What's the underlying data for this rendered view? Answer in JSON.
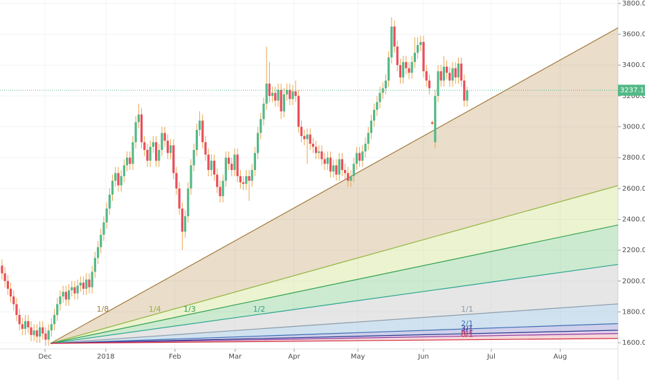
{
  "chart_data": {
    "type": "candlestick",
    "open": [
      2100,
      2050,
      2000,
      1950,
      1900,
      1850,
      1780,
      1720,
      1690,
      1740,
      1700,
      1650,
      1680,
      1640,
      1700,
      1660,
      1620,
      1680,
      1720,
      1780,
      1850,
      1900,
      1930,
      1880,
      1940,
      1960,
      1920,
      1970,
      1990,
      1950,
      2010,
      1960,
      2060,
      2150,
      2220,
      2300,
      2380,
      2470,
      2560,
      2650,
      2700,
      2620,
      2680,
      2750,
      2800,
      2760,
      2900,
      3030,
      3080,
      2900,
      2850,
      2780,
      2870,
      2900,
      2780,
      2850,
      2960,
      2910,
      2830,
      2880,
      2700,
      2600,
      2470,
      2320,
      2420,
      2600,
      2750,
      2850,
      2980,
      3040,
      2900,
      2820,
      2720,
      2780,
      2690,
      2610,
      2550,
      2650,
      2800,
      2760,
      2720,
      2820,
      2680,
      2640,
      2630,
      2680,
      2650,
      2720,
      2830,
      2960,
      3050,
      3150,
      3280,
      3200,
      3220,
      3170,
      3240,
      3100,
      3210,
      3240,
      3180,
      3230,
      3200,
      3000,
      2940,
      2920,
      2950,
      2890,
      2870,
      2830,
      2840,
      2790,
      2760,
      2800,
      2710,
      2750,
      2690,
      2790,
      2720,
      2700,
      2650,
      2680,
      2760,
      2830,
      2780,
      2840,
      2890,
      2960,
      3040,
      3110,
      3160,
      3220,
      3250,
      3300,
      3450,
      3650,
      3520,
      3400,
      3320,
      3420,
      3380,
      3350,
      3420,
      3480,
      3530,
      3550,
      3360,
      3300,
      3030,
      2900,
      3200,
      3360,
      3300,
      3390,
      3350,
      3300,
      3380,
      3320,
      3410,
      3300,
      3170
    ],
    "high": [
      2140,
      2090,
      2040,
      1990,
      1940,
      1890,
      1820,
      1760,
      1780,
      1780,
      1740,
      1720,
      1720,
      1740,
      1740,
      1700,
      1720,
      1760,
      1820,
      1890,
      1940,
      1970,
      1970,
      1980,
      2000,
      2000,
      2010,
      2030,
      2030,
      2050,
      2050,
      2100,
      2190,
      2260,
      2340,
      2420,
      2510,
      2600,
      2690,
      2740,
      2740,
      2720,
      2790,
      2840,
      2840,
      2940,
      3070,
      3150,
      3120,
      2940,
      2890,
      2910,
      2940,
      2940,
      2890,
      3000,
      3000,
      2950,
      2920,
      2920,
      2740,
      2640,
      2510,
      2460,
      2640,
      2790,
      2890,
      3020,
      3100,
      3080,
      2940,
      2860,
      2820,
      2820,
      2730,
      2650,
      2690,
      2840,
      2840,
      2800,
      2860,
      2860,
      2720,
      2680,
      2720,
      2720,
      2760,
      2870,
      3000,
      3090,
      3190,
      3520,
      3420,
      3260,
      3260,
      3280,
      3280,
      3250,
      3280,
      3280,
      3270,
      3300,
      3240,
      3040,
      2980,
      2990,
      2990,
      2930,
      2910,
      2880,
      2880,
      2830,
      2840,
      2840,
      2790,
      2790,
      2830,
      2830,
      2760,
      2740,
      2720,
      2800,
      2870,
      2870,
      2880,
      2930,
      3000,
      3080,
      3150,
      3200,
      3260,
      3290,
      3340,
      3490,
      3710,
      3690,
      3560,
      3440,
      3460,
      3460,
      3420,
      3460,
      3580,
      3580,
      3590,
      3590,
      3400,
      3340,
      3040,
      3240,
      3400,
      3400,
      3460,
      3430,
      3390,
      3420,
      3420,
      3450,
      3450,
      3340,
      3260
    ],
    "low": [
      2010,
      1960,
      1910,
      1860,
      1810,
      1740,
      1680,
      1650,
      1650,
      1660,
      1610,
      1610,
      1600,
      1600,
      1620,
      1580,
      1580,
      1640,
      1680,
      1740,
      1810,
      1860,
      1840,
      1840,
      1900,
      1880,
      1880,
      1930,
      1910,
      1910,
      1920,
      1920,
      2020,
      2110,
      2180,
      2260,
      2340,
      2430,
      2520,
      2610,
      2580,
      2580,
      2640,
      2710,
      2720,
      2720,
      2860,
      2990,
      2860,
      2810,
      2740,
      2740,
      2830,
      2740,
      2740,
      2810,
      2870,
      2790,
      2790,
      2660,
      2560,
      2430,
      2200,
      2280,
      2380,
      2560,
      2710,
      2810,
      2940,
      2860,
      2780,
      2680,
      2680,
      2650,
      2570,
      2510,
      2510,
      2610,
      2720,
      2680,
      2680,
      2640,
      2600,
      2590,
      2590,
      2520,
      2610,
      2680,
      2790,
      2920,
      3010,
      3110,
      3160,
      3160,
      3130,
      3130,
      3050,
      3060,
      3170,
      3140,
      3140,
      3160,
      2960,
      2900,
      2880,
      2760,
      2850,
      2830,
      2790,
      2790,
      2750,
      2720,
      2720,
      2670,
      2670,
      2650,
      2650,
      2680,
      2660,
      2610,
      2610,
      2640,
      2720,
      2740,
      2740,
      2800,
      2850,
      2920,
      3000,
      3070,
      3120,
      3180,
      3210,
      3260,
      3410,
      3480,
      3360,
      3280,
      3280,
      3340,
      3310,
      3310,
      3380,
      3440,
      3490,
      3320,
      3260,
      3210,
      3010,
      2860,
      3160,
      3260,
      3260,
      3310,
      3260,
      3260,
      3280,
      3280,
      3260,
      3130,
      3130
    ],
    "close": [
      2050,
      2000,
      1950,
      1900,
      1850,
      1780,
      1720,
      1690,
      1740,
      1700,
      1650,
      1680,
      1640,
      1700,
      1660,
      1620,
      1680,
      1720,
      1780,
      1850,
      1900,
      1930,
      1880,
      1940,
      1960,
      1920,
      1970,
      1990,
      1950,
      2010,
      1960,
      2060,
      2150,
      2220,
      2300,
      2380,
      2470,
      2560,
      2650,
      2700,
      2620,
      2680,
      2750,
      2800,
      2760,
      2900,
      3030,
      3080,
      2900,
      2850,
      2780,
      2870,
      2900,
      2780,
      2850,
      2960,
      2910,
      2830,
      2880,
      2700,
      2600,
      2470,
      2320,
      2420,
      2600,
      2750,
      2850,
      2980,
      3040,
      2900,
      2820,
      2720,
      2780,
      2690,
      2610,
      2550,
      2650,
      2800,
      2760,
      2720,
      2820,
      2680,
      2640,
      2630,
      2680,
      2650,
      2720,
      2830,
      2960,
      3050,
      3150,
      3280,
      3200,
      3220,
      3170,
      3240,
      3100,
      3210,
      3240,
      3180,
      3230,
      3200,
      3000,
      2940,
      2920,
      2950,
      2890,
      2870,
      2830,
      2840,
      2790,
      2760,
      2800,
      2710,
      2750,
      2690,
      2790,
      2720,
      2700,
      2650,
      2680,
      2760,
      2830,
      2780,
      2840,
      2890,
      2960,
      3040,
      3110,
      3160,
      3220,
      3250,
      3300,
      3450,
      3650,
      3520,
      3400,
      3320,
      3420,
      3380,
      3350,
      3420,
      3480,
      3530,
      3550,
      3360,
      3300,
      3250,
      3020,
      3200,
      3360,
      3300,
      3390,
      3350,
      3300,
      3380,
      3320,
      3410,
      3300,
      3170,
      3237.1
    ],
    "up_color": "#53b987",
    "down_color": "#eb4d5c",
    "wick_color": "#e8a44c",
    "xlim": [
      -0.7,
      211.9
    ],
    "ylim": [
      1560,
      3822
    ],
    "xticks": [
      {
        "value": 14.8,
        "label": "Dec"
      },
      {
        "value": 35.7,
        "label": "2018"
      },
      {
        "value": 59.5,
        "label": "Feb"
      },
      {
        "value": 80.2,
        "label": "Mar"
      },
      {
        "value": 100.5,
        "label": "Apr"
      },
      {
        "value": 122.4,
        "label": "May"
      },
      {
        "value": 145,
        "label": "Jun"
      },
      {
        "value": 168.3,
        "label": "Jul"
      },
      {
        "value": 192,
        "label": "Aug"
      }
    ],
    "yticks": [
      {
        "value": 1600,
        "label": "1600.00"
      },
      {
        "value": 1800,
        "label": "1800.00"
      },
      {
        "value": 2000,
        "label": "2000.00"
      },
      {
        "value": 2200,
        "label": "2200.00"
      },
      {
        "value": 2400,
        "label": "2400.00"
      },
      {
        "value": 2600,
        "label": "2600.00"
      },
      {
        "value": 2800,
        "label": "2800.00"
      },
      {
        "value": 3000,
        "label": "3000.00"
      },
      {
        "value": 3200,
        "label": "3200.00"
      },
      {
        "value": 3400,
        "label": "3400.00"
      },
      {
        "value": 3600,
        "label": "3600.00"
      },
      {
        "value": 3800,
        "label": "3800.00"
      }
    ],
    "grid": true,
    "last_price": {
      "value": 3237.1,
      "label": "3237.10",
      "color": "#53b987"
    },
    "fan": {
      "origin_x": 16.7,
      "origin_y": 1596,
      "unit_slope": 1.31,
      "lines": [
        {
          "label": "1/8",
          "factor": 8,
          "color": "#a27a3a",
          "fill": "rgba(190,150,90,0.32)"
        },
        {
          "label": "1/4",
          "factor": 4,
          "color": "#8fb339",
          "fill": "rgba(200,220,120,0.35)"
        },
        {
          "label": "1/3",
          "factor": 3,
          "color": "#2ea04c",
          "fill": "rgba(120,200,130,0.38)"
        },
        {
          "label": "1/2",
          "factor": 2,
          "color": "#28a58e",
          "fill": "rgba(200,200,200,0.45)"
        },
        {
          "label": "1/1",
          "factor": 1,
          "color": "#8a9aa8",
          "fill": "rgba(150,190,220,0.45)"
        },
        {
          "label": "2/1",
          "factor": 0.5,
          "color": "#3d6fb6",
          "fill": "rgba(120,120,200,0.35)"
        },
        {
          "label": "3/1",
          "factor": 0.333,
          "color": "#243a8a",
          "fill": "rgba(180,120,200,0.35)"
        },
        {
          "label": "4/1",
          "factor": 0.25,
          "color": "#8e3a9e",
          "fill": "rgba(230,140,150,0.35)"
        },
        {
          "label": "8/1",
          "factor": 0.125,
          "color": "#d02c3c",
          "fill": "none"
        }
      ]
    }
  }
}
